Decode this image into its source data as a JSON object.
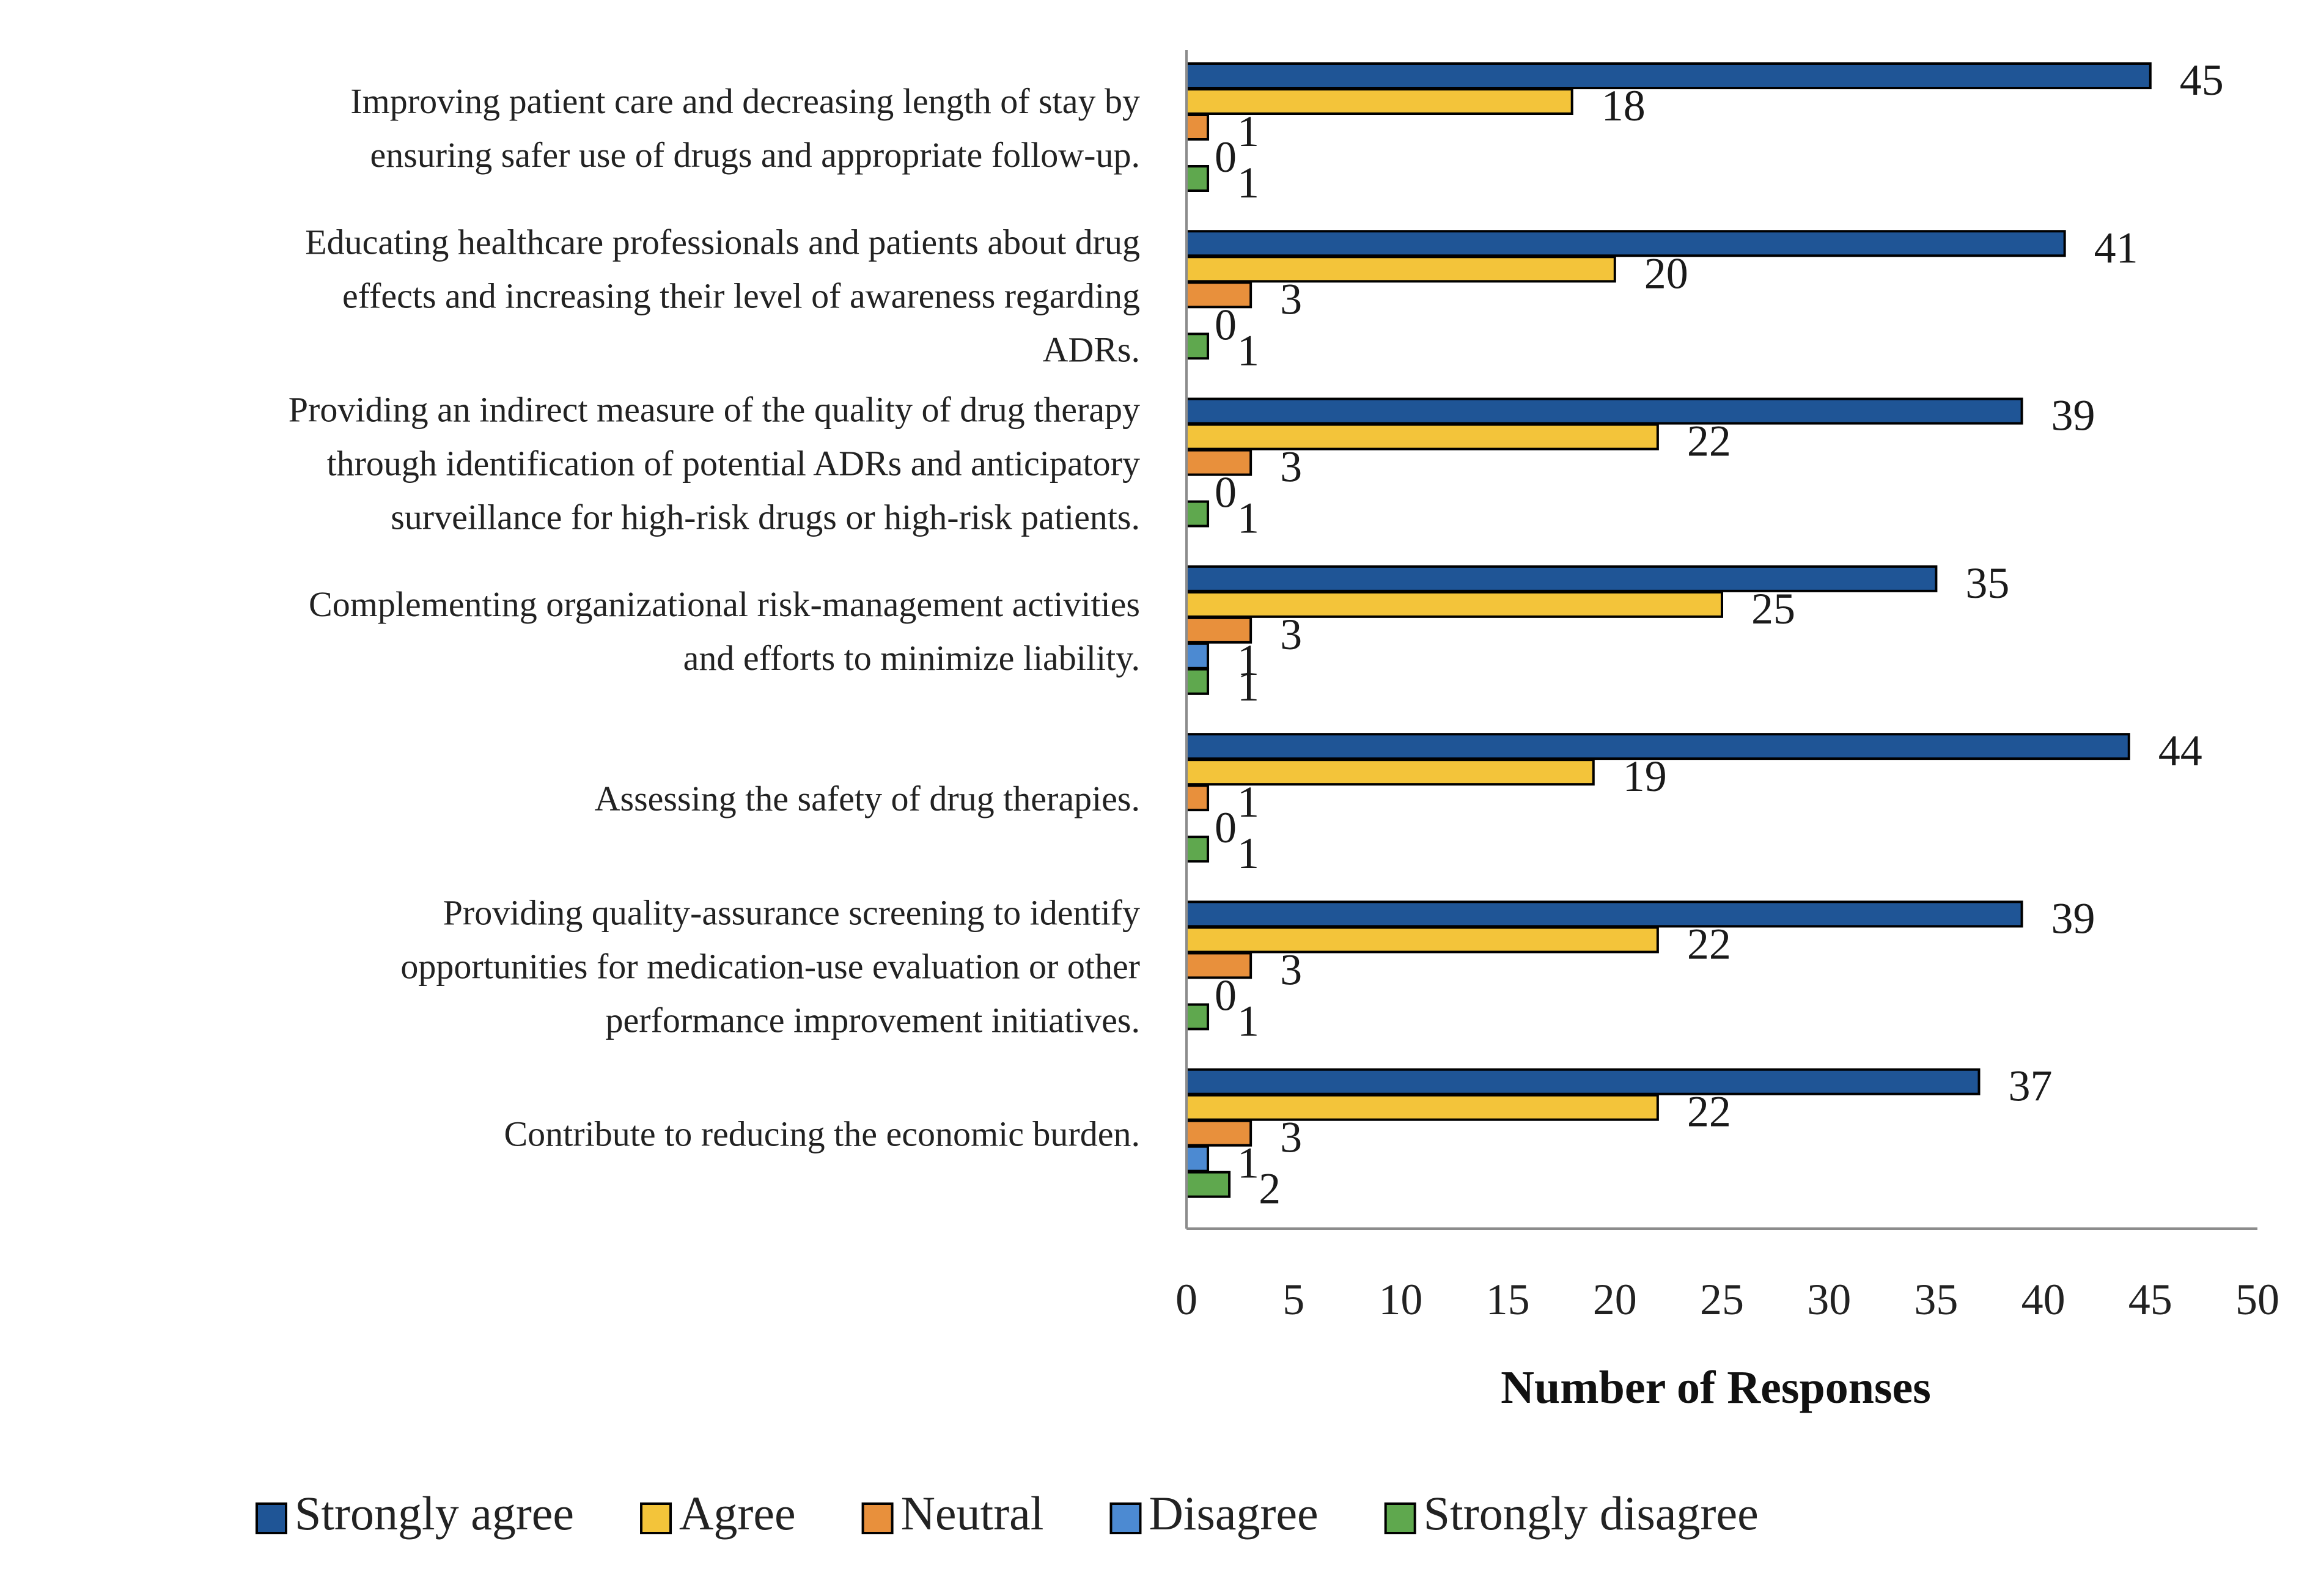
{
  "chart_data": {
    "type": "bar",
    "orientation": "horizontal",
    "title": "",
    "xlabel": "Number of Responses",
    "ylabel": "",
    "xlim": [
      0,
      50
    ],
    "xticks": [
      0,
      5,
      10,
      15,
      20,
      25,
      30,
      35,
      40,
      45,
      50
    ],
    "grid": false,
    "legend_position": "bottom",
    "categories": [
      [
        "Improving patient care and decreasing length of stay by",
        "ensuring safer use of drugs and appropriate follow-up."
      ],
      [
        "Educating healthcare professionals and patients about drug",
        "effects and increasing their level of awareness regarding",
        "ADRs."
      ],
      [
        "Providing an indirect measure of the quality of drug therapy",
        "through identification of potential ADRs and anticipatory",
        "surveillance for high-risk drugs or high-risk patients."
      ],
      [
        "Complementing organizational risk-management activities",
        "and efforts to minimize liability."
      ],
      [
        "Assessing the safety of drug therapies."
      ],
      [
        "Providing quality-assurance screening to identify",
        "opportunities for medication-use evaluation or other",
        "performance improvement initiatives."
      ],
      [
        "Contribute to reducing the economic burden."
      ]
    ],
    "series": [
      {
        "name": "Strongly agree",
        "color": "#1f5596",
        "values": [
          45,
          41,
          39,
          35,
          44,
          39,
          37
        ]
      },
      {
        "name": "Agree",
        "color": "#f3c43a",
        "values": [
          18,
          20,
          22,
          25,
          19,
          22,
          22
        ]
      },
      {
        "name": "Neutral",
        "color": "#e8903c",
        "values": [
          1,
          3,
          3,
          3,
          1,
          3,
          3
        ]
      },
      {
        "name": "Disagree",
        "color": "#4c8ad2",
        "values": [
          0,
          0,
          0,
          1,
          0,
          0,
          1
        ]
      },
      {
        "name": "Strongly disagree",
        "color": "#5fa84e",
        "values": [
          1,
          1,
          1,
          1,
          1,
          1,
          2
        ]
      }
    ]
  }
}
